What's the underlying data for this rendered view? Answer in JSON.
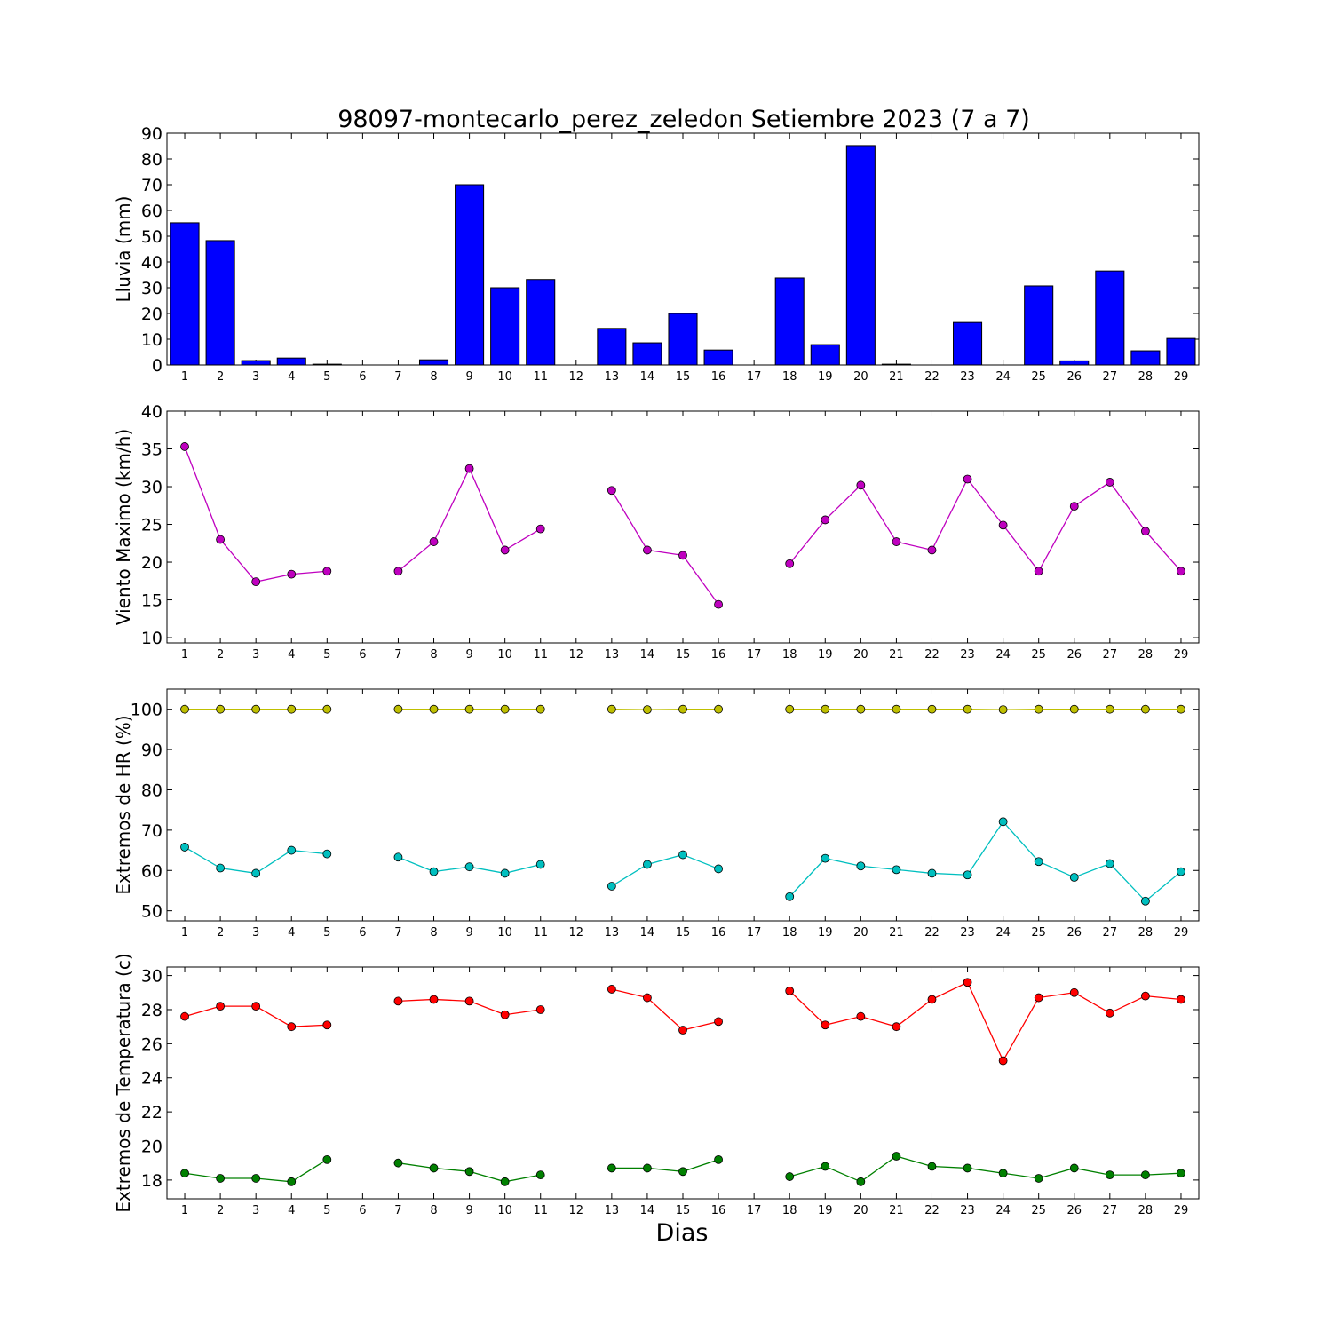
{
  "figure": {
    "title": "98097-montecarlo_perez_zeledon Setiembre 2023  (7 a 7)",
    "xlabel": "Dias"
  },
  "chart_data": [
    {
      "type": "bar",
      "ylabel": "Lluvia (mm)",
      "ylim": [
        0,
        90
      ],
      "yticks": [
        0,
        10,
        20,
        30,
        40,
        50,
        60,
        70,
        80,
        90
      ],
      "categories": [
        1,
        2,
        3,
        4,
        5,
        6,
        7,
        8,
        9,
        10,
        11,
        12,
        13,
        14,
        15,
        16,
        17,
        18,
        19,
        20,
        21,
        22,
        23,
        24,
        25,
        26,
        27,
        28,
        29
      ],
      "series": [
        {
          "values": [
            55.2,
            48.3,
            1.7,
            2.7,
            0.3,
            0,
            0,
            2.0,
            70.0,
            30.0,
            33.2,
            0,
            14.2,
            8.6,
            20.0,
            5.8,
            0,
            33.8,
            7.9,
            85.2,
            0.3,
            0,
            16.5,
            0,
            30.7,
            1.6,
            36.5,
            5.5,
            10.3
          ],
          "color": "#0000ff"
        }
      ]
    },
    {
      "type": "line",
      "ylabel": "Viento Maximo (km/h)",
      "ylim": [
        9.3,
        40
      ],
      "yticks": [
        10,
        15,
        20,
        25,
        30,
        35,
        40
      ],
      "x": [
        1,
        2,
        3,
        4,
        5,
        6,
        7,
        8,
        9,
        10,
        11,
        12,
        13,
        14,
        15,
        16,
        17,
        18,
        19,
        20,
        21,
        22,
        23,
        24,
        25,
        26,
        27,
        28,
        29
      ],
      "series": [
        {
          "values": [
            35.3,
            23.0,
            17.4,
            18.4,
            18.8,
            null,
            18.8,
            22.7,
            32.4,
            21.6,
            24.4,
            null,
            29.5,
            21.6,
            20.9,
            14.4,
            null,
            19.8,
            25.6,
            30.2,
            22.7,
            21.6,
            31.0,
            24.9,
            18.8,
            27.4,
            30.6,
            24.1,
            18.8
          ],
          "color": "#bf00bf"
        }
      ]
    },
    {
      "type": "line",
      "ylabel": "Extremos de HR (%)",
      "ylim": [
        47.5,
        105
      ],
      "yticks": [
        50,
        60,
        70,
        80,
        90,
        100
      ],
      "x": [
        1,
        2,
        3,
        4,
        5,
        6,
        7,
        8,
        9,
        10,
        11,
        12,
        13,
        14,
        15,
        16,
        17,
        18,
        19,
        20,
        21,
        22,
        23,
        24,
        25,
        26,
        27,
        28,
        29
      ],
      "series": [
        {
          "values": [
            100,
            100,
            100,
            100,
            100,
            null,
            100,
            100,
            100,
            100,
            100,
            null,
            100,
            99.9,
            100,
            100,
            null,
            100,
            100,
            100,
            100,
            100,
            100,
            99.9,
            100,
            100,
            100,
            100,
            100
          ],
          "color": "#bfbf00"
        },
        {
          "values": [
            65.8,
            60.6,
            59.3,
            65.0,
            64.1,
            null,
            63.3,
            59.7,
            60.9,
            59.3,
            61.5,
            null,
            56.1,
            61.5,
            63.9,
            60.4,
            null,
            53.5,
            63.0,
            61.1,
            60.2,
            59.3,
            58.9,
            72.1,
            62.2,
            58.3,
            61.7,
            52.4,
            59.7
          ],
          "color": "#00bfbf"
        }
      ]
    },
    {
      "type": "line",
      "ylabel": "Extremos de Temperatura (c)",
      "ylim": [
        16.9,
        30.5
      ],
      "yticks": [
        18,
        20,
        22,
        24,
        26,
        28,
        30
      ],
      "x": [
        1,
        2,
        3,
        4,
        5,
        6,
        7,
        8,
        9,
        10,
        11,
        12,
        13,
        14,
        15,
        16,
        17,
        18,
        19,
        20,
        21,
        22,
        23,
        24,
        25,
        26,
        27,
        28,
        29
      ],
      "series": [
        {
          "values": [
            27.6,
            28.2,
            28.2,
            27.0,
            27.1,
            null,
            28.5,
            28.6,
            28.5,
            27.7,
            28.0,
            null,
            29.2,
            28.7,
            26.8,
            27.3,
            null,
            29.1,
            27.1,
            27.6,
            27.0,
            28.6,
            29.6,
            25.0,
            28.7,
            29.0,
            27.8,
            28.8,
            28.6
          ],
          "color": "#ff0000"
        },
        {
          "values": [
            18.4,
            18.1,
            18.1,
            17.9,
            19.2,
            null,
            19.0,
            18.7,
            18.5,
            17.9,
            18.3,
            null,
            18.7,
            18.7,
            18.5,
            19.2,
            null,
            18.2,
            18.8,
            17.9,
            19.4,
            18.8,
            18.7,
            18.4,
            18.1,
            18.7,
            18.3,
            18.3,
            18.4
          ],
          "color": "#008000"
        }
      ]
    }
  ]
}
